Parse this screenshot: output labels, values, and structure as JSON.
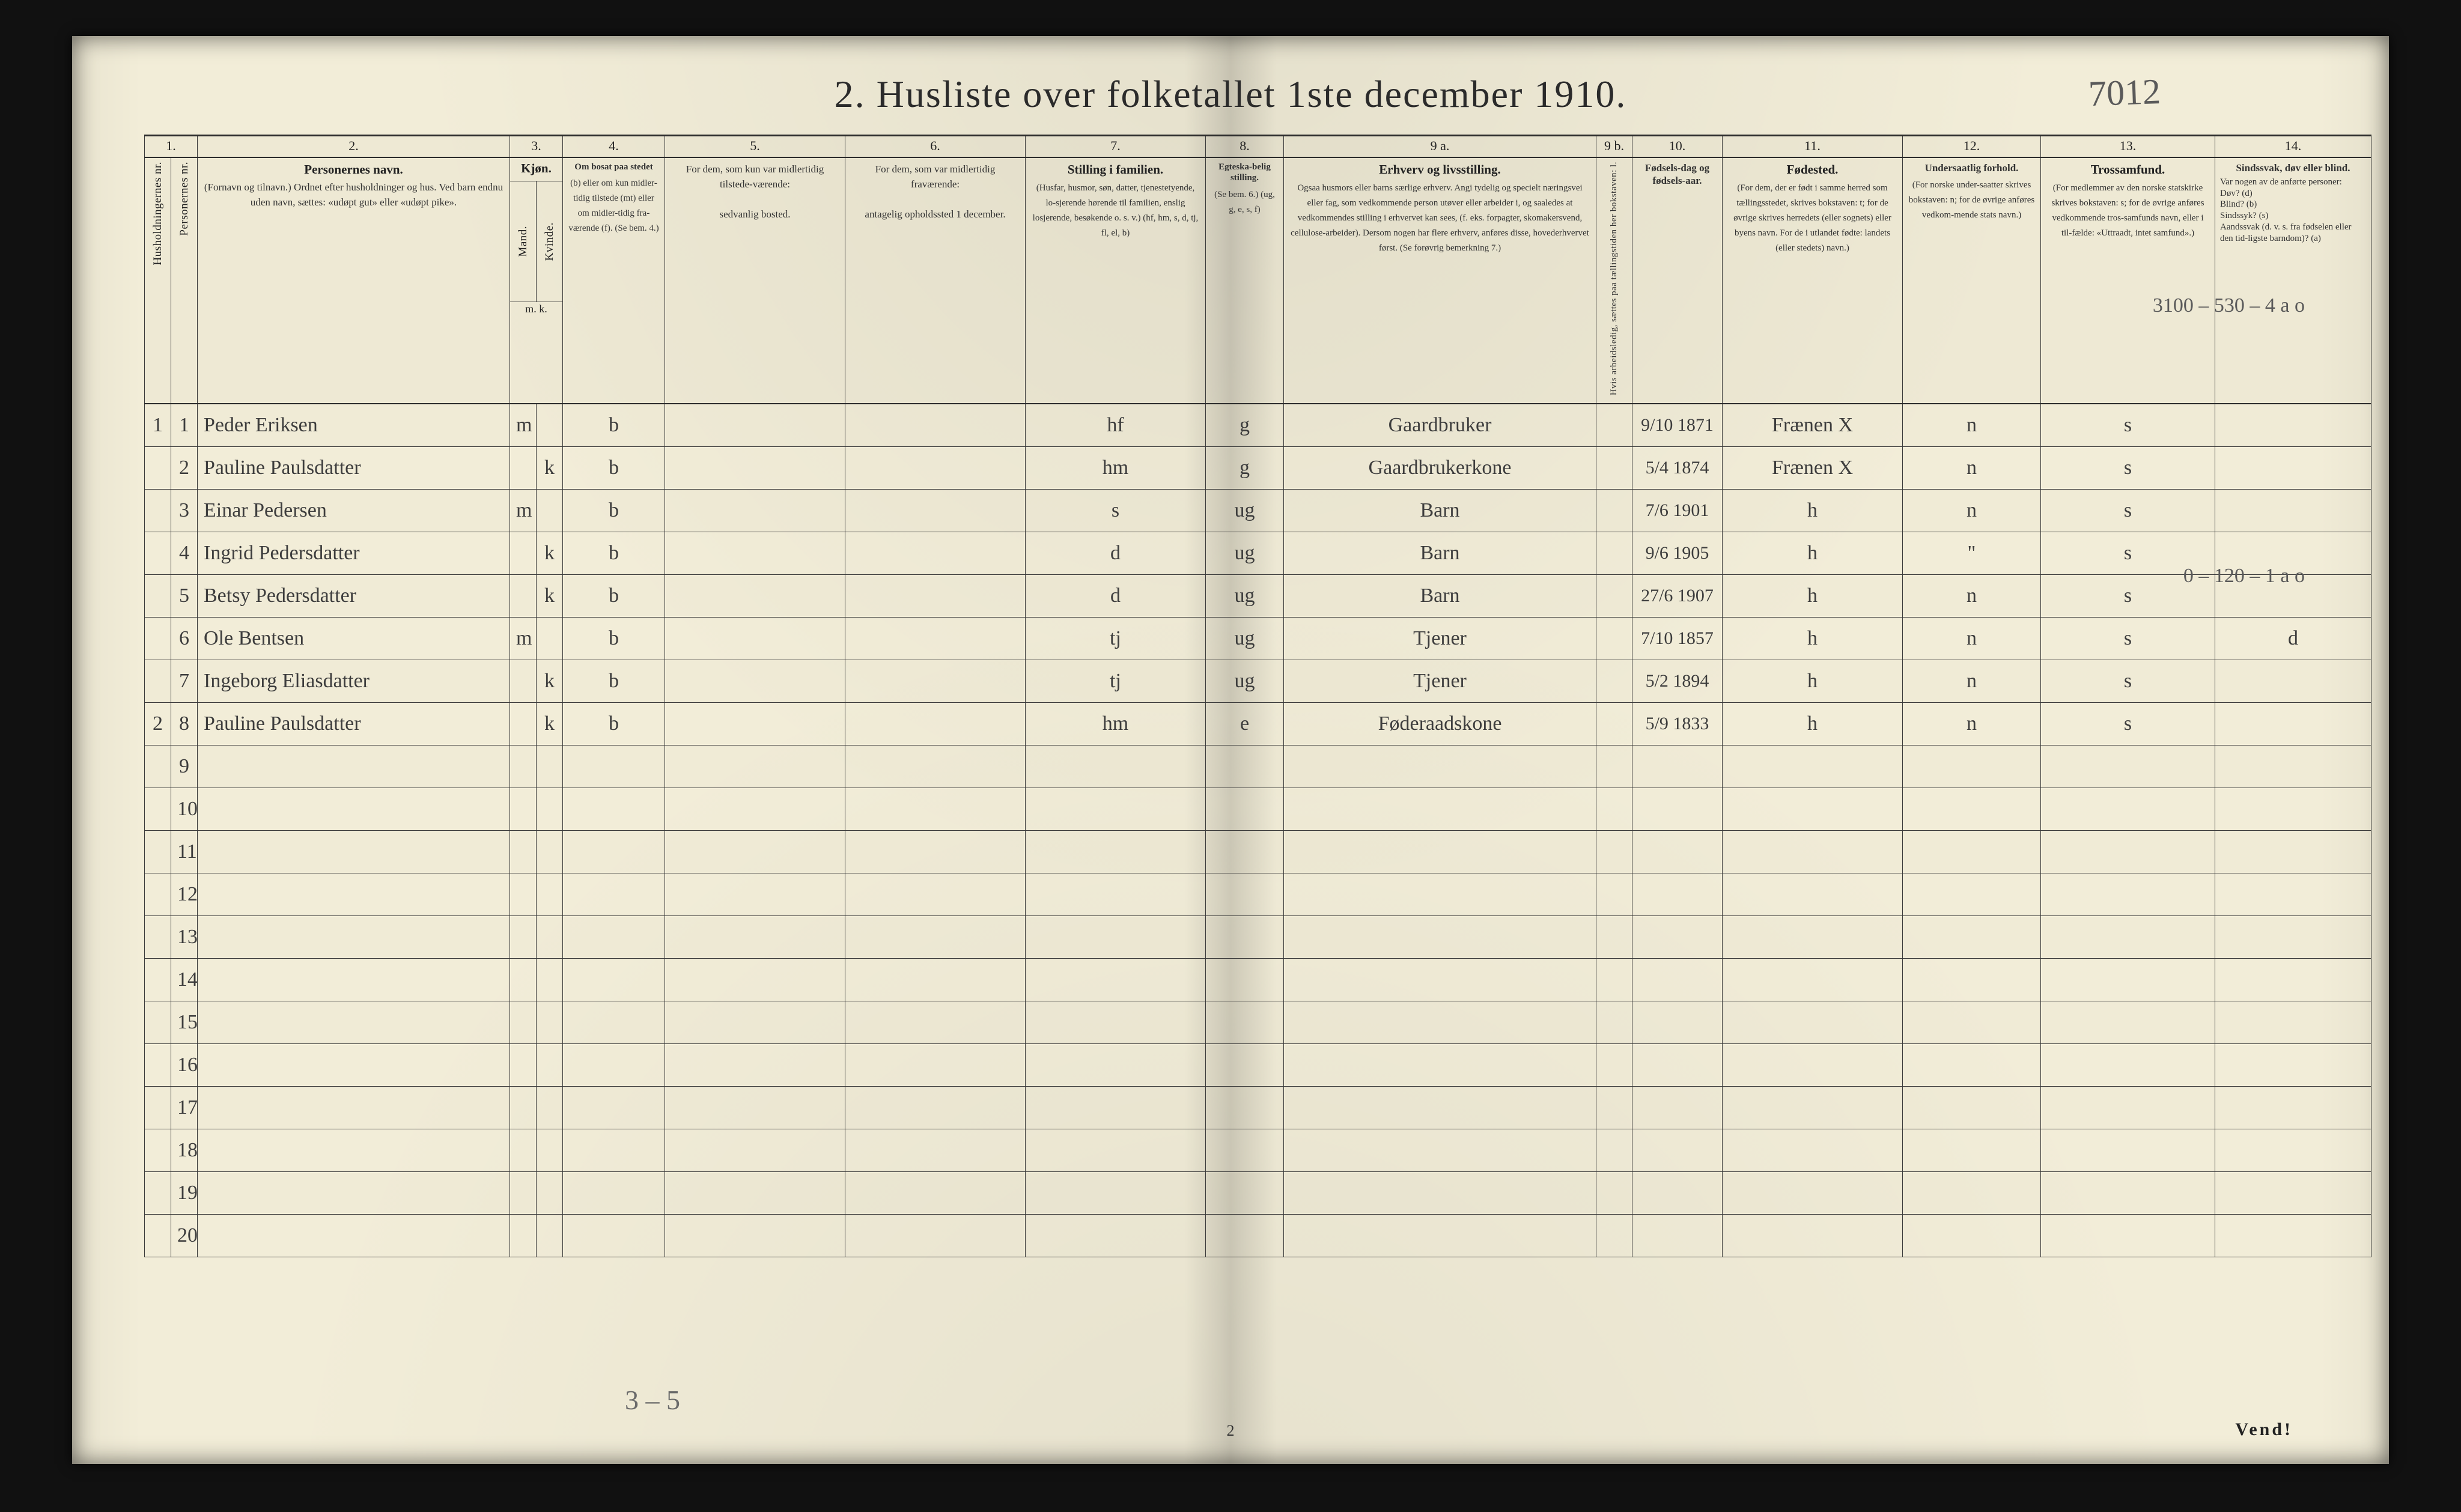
{
  "title": "2.  Husliste over folketallet 1ste december 1910.",
  "top_right_annotation": "7012",
  "footer": {
    "page_number": "2",
    "turn": "Vend!",
    "bottom_note": "3 – 5"
  },
  "margin_notes": {
    "row1_right": "3100 – 530 – 4   a o",
    "row7_right": "0 – 120 – 1   a o"
  },
  "columns": {
    "nums": [
      "1.",
      "",
      "2.",
      "3.",
      "",
      "4.",
      "5.",
      "6.",
      "7.",
      "8.",
      "9 a.",
      "9 b.",
      "10.",
      "11.",
      "12.",
      "13.",
      "14."
    ],
    "h1": {
      "label": "Husholdningernes nr."
    },
    "h1b": {
      "label": "Personernes nr."
    },
    "h2": {
      "title": "Personernes navn.",
      "sub": "(Fornavn og tilnavn.)\nOrdnet efter husholdninger og hus.\nVed barn endnu uden navn, sættes: «udøpt gut» eller «udøpt pike»."
    },
    "h3": {
      "title": "Kjøn.",
      "sub_a": "Mand.",
      "sub_b": "Kvinde.",
      "foot": "m.  k."
    },
    "h4": {
      "title": "Om bosat paa stedet",
      "sub": "(b) eller om kun midler-tidig tilstede (mt) eller om midler-tidig fra-værende (f).\n(Se bem. 4.)"
    },
    "h5": {
      "title": "For dem, som kun var midlertidig tilstede-værende:",
      "sub": "sedvanlig bosted."
    },
    "h6": {
      "title": "For dem, som var midlertidig fraværende:",
      "sub": "antagelig opholdssted 1 december."
    },
    "h7": {
      "title": "Stilling i familien.",
      "sub": "(Husfar, husmor, søn, datter, tjenestetyende, lo-sjerende hørende til familien, enslig losjerende, besøkende o. s. v.)\n(hf, hm, s, d, tj, fl, el, b)"
    },
    "h8": {
      "title": "Egteska-belig stilling.",
      "sub": "(Se bem. 6.)\n(ug, g, e, s, f)"
    },
    "h9": {
      "title": "Erhverv og livsstilling.",
      "sub": "Ogsaa husmors eller barns særlige erhverv. Angi tydelig og specielt næringsvei eller fag, som vedkommende person utøver eller arbeider i, og saaledes at vedkommendes stilling i erhvervet kan sees, (f. eks. forpagter, skomakersvend, cellulose-arbeider). Dersom nogen har flere erhverv, anføres disse, hovederhvervet først.\n(Se forøvrig bemerkning 7.)"
    },
    "h9b": {
      "label": "Hvis arbeidsledig, sættes paa tællingstiden her bokstaven: l."
    },
    "h10": {
      "title": "Fødsels-dag og fødsels-aar."
    },
    "h11": {
      "title": "Fødested.",
      "sub": "(For dem, der er født i samme herred som tællingsstedet, skrives bokstaven: t; for de øvrige skrives herredets (eller sognets) eller byens navn. For de i utlandet fødte: landets (eller stedets) navn.)"
    },
    "h12": {
      "title": "Undersaatlig forhold.",
      "sub": "(For norske under-saatter skrives bokstaven: n; for de øvrige anføres vedkom-mende stats navn.)"
    },
    "h13": {
      "title": "Trossamfund.",
      "sub": "(For medlemmer av den norske statskirke skrives bokstaven: s; for de øvrige anføres vedkommende tros-samfunds navn, eller i til-fælde: «Uttraadt, intet samfund».)"
    },
    "h14": {
      "title": "Sindssvak, døv eller blind.",
      "sub": "Var nogen av de anførte personer:\nDøv?      (d)\nBlind?    (b)\nSindssyk? (s)\nAandssvak (d. v. s. fra fødselen eller den tid-ligste barndom)?  (a)"
    }
  },
  "rows": [
    {
      "hh": "1",
      "no": "1",
      "name": "Peder Eriksen",
      "m": "m",
      "k": "",
      "bosat": "b",
      "c5": "",
      "c6": "",
      "fam": "hf",
      "egt": "g",
      "erhv": "Gaardbruker",
      "c9b": "",
      "fdato": "9/10 1871",
      "fsted": "Frænen  X",
      "under": "n",
      "tros": "s",
      "c14": ""
    },
    {
      "hh": "",
      "no": "2",
      "name": "Pauline Paulsdatter",
      "m": "",
      "k": "k",
      "bosat": "b",
      "c5": "",
      "c6": "",
      "fam": "hm",
      "egt": "g",
      "erhv": "Gaardbrukerkone",
      "c9b": "",
      "fdato": "5/4 1874",
      "fsted": "Frænen  X",
      "under": "n",
      "tros": "s",
      "c14": ""
    },
    {
      "hh": "",
      "no": "3",
      "name": "Einar Pedersen",
      "m": "m",
      "k": "",
      "bosat": "b",
      "c5": "",
      "c6": "",
      "fam": "s",
      "egt": "ug",
      "erhv": "Barn",
      "c9b": "",
      "fdato": "7/6 1901",
      "fsted": "h",
      "under": "n",
      "tros": "s",
      "c14": ""
    },
    {
      "hh": "",
      "no": "4",
      "name": "Ingrid Pedersdatter",
      "m": "",
      "k": "k",
      "bosat": "b",
      "c5": "",
      "c6": "",
      "fam": "d",
      "egt": "ug",
      "erhv": "Barn",
      "c9b": "",
      "fdato": "9/6 1905",
      "fsted": "h",
      "under": "\"",
      "tros": "s",
      "c14": ""
    },
    {
      "hh": "",
      "no": "5",
      "name": "Betsy Pedersdatter",
      "m": "",
      "k": "k",
      "bosat": "b",
      "c5": "",
      "c6": "",
      "fam": "d",
      "egt": "ug",
      "erhv": "Barn",
      "c9b": "",
      "fdato": "27/6 1907",
      "fsted": "h",
      "under": "n",
      "tros": "s",
      "c14": ""
    },
    {
      "hh": "",
      "no": "6",
      "name": "Ole Bentsen",
      "m": "m",
      "k": "",
      "bosat": "b",
      "c5": "",
      "c6": "",
      "fam": "tj",
      "egt": "ug",
      "erhv": "Tjener",
      "c9b": "",
      "fdato": "7/10 1857",
      "fsted": "h",
      "under": "n",
      "tros": "s",
      "c14": "d"
    },
    {
      "hh": "",
      "no": "7",
      "name": "Ingeborg Eliasdatter",
      "m": "",
      "k": "k",
      "bosat": "b",
      "c5": "",
      "c6": "",
      "fam": "tj",
      "egt": "ug",
      "erhv": "Tjener",
      "c9b": "",
      "fdato": "5/2 1894",
      "fsted": "h",
      "under": "n",
      "tros": "s",
      "c14": ""
    },
    {
      "hh": "2",
      "no": "8",
      "name": "Pauline Paulsdatter",
      "m": "",
      "k": "k",
      "bosat": "b",
      "c5": "",
      "c6": "",
      "fam": "hm",
      "egt": "e",
      "erhv": "Føderaadskone",
      "c9b": "",
      "fdato": "5/9 1833",
      "fsted": "h",
      "under": "n",
      "tros": "s",
      "c14": ""
    }
  ],
  "blank_row_numbers": [
    "9",
    "10",
    "11",
    "12",
    "13",
    "14",
    "15",
    "16",
    "17",
    "18",
    "19",
    "20"
  ],
  "colors": {
    "paper": "#f2edd8",
    "ink": "#2b2b2b",
    "hand": "#4a4a4a",
    "frame": "#111111"
  }
}
